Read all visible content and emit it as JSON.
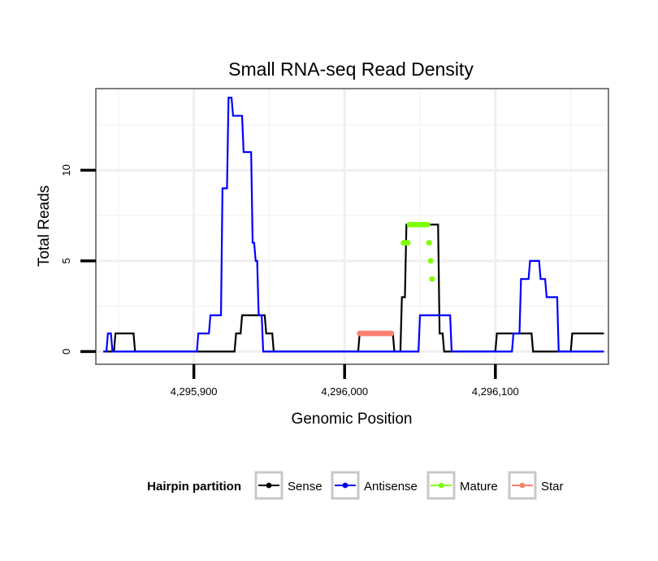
{
  "chart_data": {
    "type": "line",
    "title": "Small RNA-seq Read Density",
    "xlabel": "Genomic Position",
    "ylabel": "Total Reads",
    "xlim": [
      4295835,
      4296175
    ],
    "ylim": [
      -0.7,
      14.5
    ],
    "x_ticks": [
      {
        "value": 4295900,
        "label": "4,295,900"
      },
      {
        "value": 4296000,
        "label": "4,296,000"
      },
      {
        "value": 4296100,
        "label": "4,296,100"
      }
    ],
    "y_ticks": [
      {
        "value": 0,
        "label": "0"
      },
      {
        "value": 5,
        "label": "5"
      },
      {
        "value": 10,
        "label": "10"
      }
    ],
    "grid": true,
    "legend": {
      "title": "Hairpin partition",
      "position": "bottom",
      "entries": [
        {
          "name": "Sense",
          "color": "#000000"
        },
        {
          "name": "Antisense",
          "color": "#0000ff"
        },
        {
          "name": "Mature",
          "color": "#7fff00"
        },
        {
          "name": "Star",
          "color": "#fa8072"
        }
      ]
    },
    "series": [
      {
        "name": "Sense",
        "color": "#000000",
        "mode": "line",
        "x": [
          4295840,
          4295847,
          4295848,
          4295860,
          4295861,
          4295927,
          4295928,
          4295931,
          4295932,
          4295947,
          4295948,
          4295952,
          4295953,
          4296009,
          4296010,
          4296032,
          4296033,
          4296037,
          4296038,
          4296040,
          4296041,
          4296062,
          4296063,
          4296065,
          4296066,
          4296100,
          4296101,
          4296124,
          4296125,
          4296150,
          4296151,
          4296172
        ],
        "y": [
          0,
          0,
          1,
          1,
          0,
          0,
          1,
          1,
          2,
          2,
          1,
          1,
          0,
          0,
          1,
          1,
          0,
          0,
          3,
          3,
          7,
          7,
          1,
          1,
          0,
          0,
          1,
          1,
          0,
          0,
          1,
          1
        ]
      },
      {
        "name": "Antisense",
        "color": "#0000ff",
        "mode": "line",
        "x": [
          4295840,
          4295842,
          4295843,
          4295845,
          4295846,
          4295848,
          4295849,
          4295902,
          4295903,
          4295910,
          4295911,
          4295918,
          4295919,
          4295922,
          4295923,
          4295925,
          4295926,
          4295932,
          4295933,
          4295938,
          4295939,
          4295940,
          4295941,
          4295942,
          4295943,
          4295945,
          4295946,
          4295948,
          4295949,
          4295951,
          4295952,
          4295954,
          4295955,
          4296049,
          4296050,
          4296070,
          4296071,
          4296111,
          4296112,
          4296116,
          4296117,
          4296122,
          4296123,
          4296129,
          4296130,
          4296133,
          4296134,
          4296141,
          4296142,
          4296146,
          4296147,
          4296172
        ],
        "y": [
          0,
          0,
          1,
          1,
          0,
          0,
          0,
          0,
          1,
          1,
          2,
          2,
          9,
          9,
          14,
          14,
          13,
          13,
          11,
          11,
          6,
          6,
          5,
          5,
          2,
          2,
          0,
          0,
          0,
          0,
          0,
          0,
          0,
          0,
          2,
          2,
          0,
          0,
          1,
          1,
          4,
          4,
          5,
          5,
          4,
          4,
          3,
          3,
          0,
          0,
          0,
          0
        ]
      },
      {
        "name": "Mature",
        "color": "#7fff00",
        "mode": "points",
        "x": [
          4296039,
          4296040,
          4296041,
          4296042,
          4296043,
          4296044,
          4296045,
          4296046,
          4296047,
          4296048,
          4296049,
          4296050,
          4296051,
          4296052,
          4296053,
          4296054,
          4296055,
          4296056,
          4296057,
          4296058
        ],
        "y": [
          6,
          6,
          6,
          6,
          7,
          7,
          7,
          7,
          7,
          7,
          7,
          7,
          7,
          7,
          7,
          7,
          7,
          6,
          5,
          4
        ]
      },
      {
        "name": "Star",
        "color": "#fa8072",
        "mode": "points",
        "x": [
          4296010,
          4296011,
          4296012,
          4296013,
          4296014,
          4296015,
          4296016,
          4296017,
          4296018,
          4296019,
          4296020,
          4296021,
          4296022,
          4296023,
          4296024,
          4296025,
          4296026,
          4296027,
          4296028,
          4296029,
          4296030,
          4296031
        ],
        "y": [
          1,
          1,
          1,
          1,
          1,
          1,
          1,
          1,
          1,
          1,
          1,
          1,
          1,
          1,
          1,
          1,
          1,
          1,
          1,
          1,
          1,
          1
        ]
      }
    ]
  }
}
